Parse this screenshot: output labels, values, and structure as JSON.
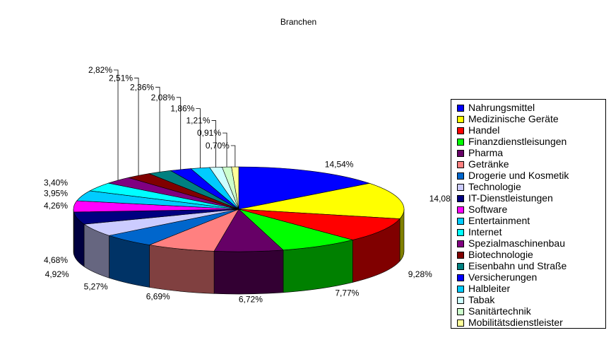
{
  "chart_data": {
    "type": "pie",
    "style": "3d-exploded-none",
    "title": "Branchen",
    "legend_position": "right",
    "categories": [
      "Nahrungsmittel",
      "Medizinische Geräte",
      "Handel",
      "Finanzdienstleisungen",
      "Pharma",
      "Getränke",
      "Drogerie und Kosmetik",
      "Technologie",
      "IT-Dienstleistungen",
      "Software",
      "Entertainment",
      "Internet",
      "Spezialmaschinenbau",
      "Biotechnologie",
      "Eisenbahn und Straße",
      "Versicherungen",
      "Halbleiter",
      "Tabak",
      "Sanitärtechnik",
      "Mobilitätsdienstleister"
    ],
    "values": [
      14.54,
      14.08,
      9.28,
      7.77,
      6.72,
      6.69,
      5.27,
      4.92,
      4.68,
      4.26,
      3.95,
      3.4,
      2.82,
      2.51,
      2.36,
      2.08,
      1.86,
      1.21,
      0.91,
      0.7
    ],
    "labels": [
      "14,54%",
      "14,08%",
      "9,28%",
      "7,77%",
      "6,72%",
      "6,69%",
      "5,27%",
      "4,92%",
      "4,68%",
      "4,26%",
      "3,95%",
      "3,40%",
      "2,82%",
      "2,51%",
      "2,36%",
      "2,08%",
      "1,86%",
      "1,21%",
      "0,91%",
      "0,70%"
    ],
    "colors": [
      "#0000ff",
      "#ffff00",
      "#ff0000",
      "#00ff00",
      "#660066",
      "#ff8080",
      "#0066cc",
      "#ccccff",
      "#000080",
      "#ff00ff",
      "#00ccff",
      "#00ffff",
      "#800080",
      "#800000",
      "#008080",
      "#0000ff",
      "#00ccff",
      "#ccffff",
      "#ccffcc",
      "#ffff99"
    ]
  }
}
